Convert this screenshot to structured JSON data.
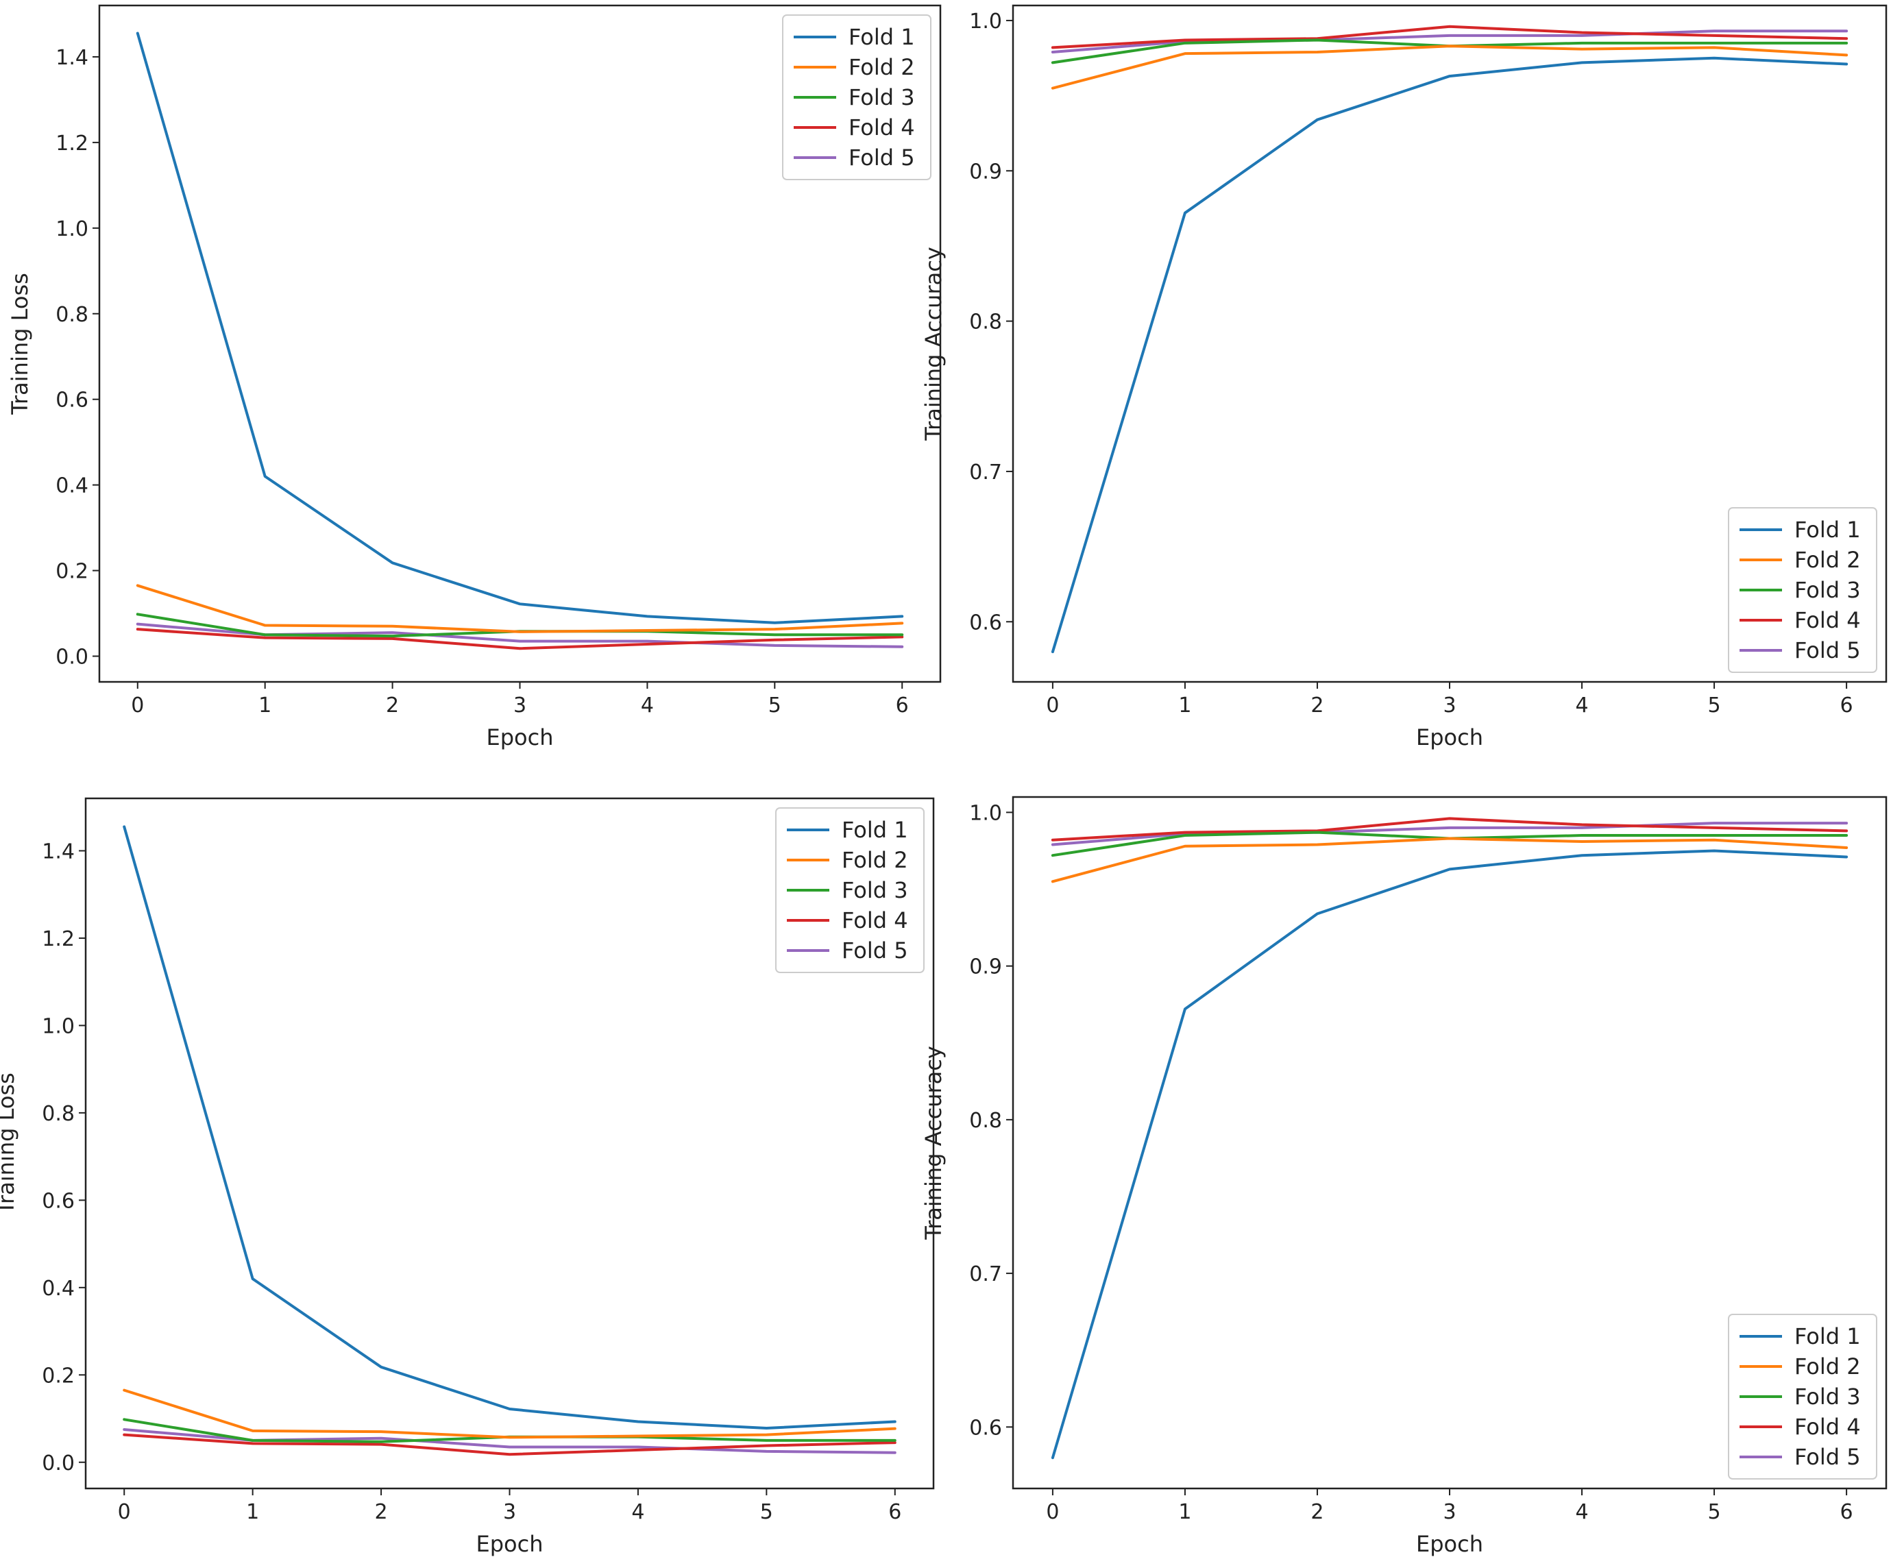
{
  "figure": {
    "description_panels": 4
  },
  "colors": {
    "Fold 1": "#1f77b4",
    "Fold 2": "#ff7f0e",
    "Fold 3": "#2ca02c",
    "Fold 4": "#d62728",
    "Fold 5": "#9467bd"
  },
  "chart_data": [
    {
      "type": "line",
      "panel": "top-left",
      "xlabel": "Epoch",
      "ylabel": "Training Loss",
      "x": [
        0,
        1,
        2,
        3,
        4,
        5,
        6
      ],
      "xlim": [
        -0.3,
        6.3
      ],
      "ylim": [
        -0.06,
        1.52
      ],
      "xticks": [
        0,
        1,
        2,
        3,
        4,
        5,
        6
      ],
      "yticks": [
        0.0,
        0.2,
        0.4,
        0.6,
        0.8,
        1.0,
        1.2,
        1.4
      ],
      "ytick_labels": [
        "0.0",
        "0.2",
        "0.4",
        "0.6",
        "0.8",
        "1.0",
        "1.2",
        "1.4"
      ],
      "legend_loc": "upper right",
      "series": [
        {
          "name": "Fold 1",
          "values": [
            1.455,
            0.42,
            0.218,
            0.122,
            0.093,
            0.078,
            0.093
          ]
        },
        {
          "name": "Fold 2",
          "values": [
            0.165,
            0.072,
            0.07,
            0.057,
            0.06,
            0.063,
            0.077
          ]
        },
        {
          "name": "Fold 3",
          "values": [
            0.098,
            0.05,
            0.047,
            0.058,
            0.058,
            0.05,
            0.05
          ]
        },
        {
          "name": "Fold 4",
          "values": [
            0.063,
            0.043,
            0.041,
            0.018,
            0.028,
            0.038,
            0.045
          ]
        },
        {
          "name": "Fold 5",
          "values": [
            0.075,
            0.05,
            0.055,
            0.035,
            0.035,
            0.025,
            0.022
          ]
        }
      ]
    },
    {
      "type": "line",
      "panel": "top-right",
      "xlabel": "Epoch",
      "ylabel": "Training Accuracy",
      "x": [
        0,
        1,
        2,
        3,
        4,
        5,
        6
      ],
      "xlim": [
        -0.3,
        6.3
      ],
      "ylim": [
        0.56,
        1.01
      ],
      "xticks": [
        0,
        1,
        2,
        3,
        4,
        5,
        6
      ],
      "yticks": [
        0.6,
        0.7,
        0.8,
        0.9,
        1.0
      ],
      "ytick_labels": [
        "0.6",
        "0.7",
        "0.8",
        "0.9",
        "1.0"
      ],
      "legend_loc": "lower right",
      "series": [
        {
          "name": "Fold 1",
          "values": [
            0.58,
            0.872,
            0.934,
            0.963,
            0.972,
            0.975,
            0.971
          ]
        },
        {
          "name": "Fold 2",
          "values": [
            0.955,
            0.978,
            0.979,
            0.983,
            0.981,
            0.982,
            0.977
          ]
        },
        {
          "name": "Fold 3",
          "values": [
            0.972,
            0.985,
            0.987,
            0.983,
            0.985,
            0.985,
            0.985
          ]
        },
        {
          "name": "Fold 4",
          "values": [
            0.982,
            0.987,
            0.988,
            0.996,
            0.992,
            0.99,
            0.988
          ]
        },
        {
          "name": "Fold 5",
          "values": [
            0.979,
            0.986,
            0.987,
            0.99,
            0.99,
            0.993,
            0.993
          ]
        }
      ]
    },
    {
      "type": "line",
      "panel": "bottom-left",
      "xlabel": "Epoch",
      "ylabel": "Training Loss",
      "x": [
        0,
        1,
        2,
        3,
        4,
        5,
        6
      ],
      "xlim": [
        -0.3,
        6.3
      ],
      "ylim": [
        -0.06,
        1.52
      ],
      "xticks": [
        0,
        1,
        2,
        3,
        4,
        5,
        6
      ],
      "yticks": [
        0.0,
        0.2,
        0.4,
        0.6,
        0.8,
        1.0,
        1.2,
        1.4
      ],
      "ytick_labels": [
        "0.0",
        "0.2",
        "0.4",
        "0.6",
        "0.8",
        "1.0",
        "1.2",
        "1.4"
      ],
      "legend_loc": "upper right",
      "series": [
        {
          "name": "Fold 1",
          "values": [
            1.455,
            0.42,
            0.218,
            0.122,
            0.093,
            0.078,
            0.093
          ]
        },
        {
          "name": "Fold 2",
          "values": [
            0.165,
            0.072,
            0.07,
            0.057,
            0.06,
            0.063,
            0.077
          ]
        },
        {
          "name": "Fold 3",
          "values": [
            0.098,
            0.05,
            0.047,
            0.058,
            0.058,
            0.05,
            0.05
          ]
        },
        {
          "name": "Fold 4",
          "values": [
            0.063,
            0.043,
            0.041,
            0.018,
            0.028,
            0.038,
            0.045
          ]
        },
        {
          "name": "Fold 5",
          "values": [
            0.075,
            0.05,
            0.055,
            0.035,
            0.035,
            0.025,
            0.022
          ]
        }
      ]
    },
    {
      "type": "line",
      "panel": "bottom-right",
      "xlabel": "Epoch",
      "ylabel": "Training Accuracy",
      "x": [
        0,
        1,
        2,
        3,
        4,
        5,
        6
      ],
      "xlim": [
        -0.3,
        6.3
      ],
      "ylim": [
        0.56,
        1.01
      ],
      "xticks": [
        0,
        1,
        2,
        3,
        4,
        5,
        6
      ],
      "yticks": [
        0.6,
        0.7,
        0.8,
        0.9,
        1.0
      ],
      "ytick_labels": [
        "0.6",
        "0.7",
        "0.8",
        "0.9",
        "1.0"
      ],
      "legend_loc": "lower right",
      "series": [
        {
          "name": "Fold 1",
          "values": [
            0.58,
            0.872,
            0.934,
            0.963,
            0.972,
            0.975,
            0.971
          ]
        },
        {
          "name": "Fold 2",
          "values": [
            0.955,
            0.978,
            0.979,
            0.983,
            0.981,
            0.982,
            0.977
          ]
        },
        {
          "name": "Fold 3",
          "values": [
            0.972,
            0.985,
            0.987,
            0.983,
            0.985,
            0.985,
            0.985
          ]
        },
        {
          "name": "Fold 4",
          "values": [
            0.982,
            0.987,
            0.988,
            0.996,
            0.992,
            0.99,
            0.988
          ]
        },
        {
          "name": "Fold 5",
          "values": [
            0.979,
            0.986,
            0.987,
            0.99,
            0.99,
            0.993,
            0.993
          ]
        }
      ]
    }
  ]
}
